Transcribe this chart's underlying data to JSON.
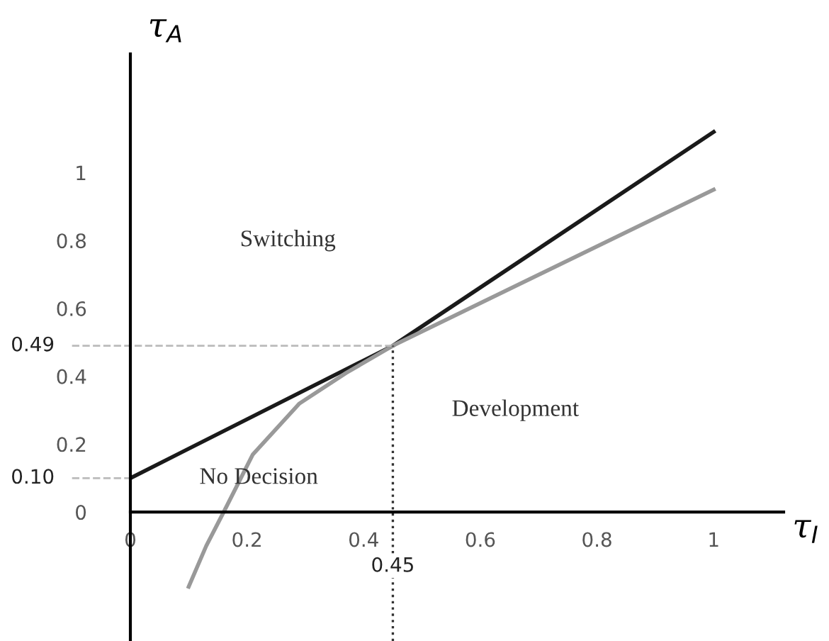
{
  "chart_data": {
    "type": "line",
    "xlabel": "τ$_{I}$",
    "ylabel": "τ$_{A}$",
    "xlim": [
      0,
      1.12
    ],
    "ylim": [
      -0.38,
      1.35
    ],
    "xticks": [
      0,
      0.2,
      0.4,
      0.6,
      0.8,
      1
    ],
    "yticks": [
      0,
      0.2,
      0.4,
      0.6,
      0.8,
      1
    ],
    "grid": false,
    "legend": false,
    "marker": "none",
    "line_style": "solid",
    "series": [
      {
        "color": "#1a1a1a",
        "x": [
          0,
          0.45,
          1
        ],
        "values": [
          0.1,
          0.49,
          1.12
        ]
      },
      {
        "color": "#999999",
        "x": [
          0.1,
          0.13,
          0.16,
          0.21,
          0.29,
          0.37,
          0.45,
          1
        ],
        "values": [
          -0.22,
          -0.1,
          0,
          0.17,
          0.32,
          0.41,
          0.49,
          0.95
        ]
      }
    ],
    "ref_lines": [
      {
        "axis": "y",
        "value": 0.49,
        "label": "0.49",
        "color": "#bbbbbb",
        "line_style": "dashed"
      },
      {
        "axis": "y",
        "value": 0.1,
        "label": "0.10",
        "color": "#bbbbbb",
        "line_style": "dashed"
      },
      {
        "axis": "x",
        "value": 0.45,
        "label": "0.45",
        "color": "#333333",
        "line_style": "dotted"
      }
    ],
    "annotations": [
      "Switching",
      "No Decision",
      "Development"
    ]
  }
}
